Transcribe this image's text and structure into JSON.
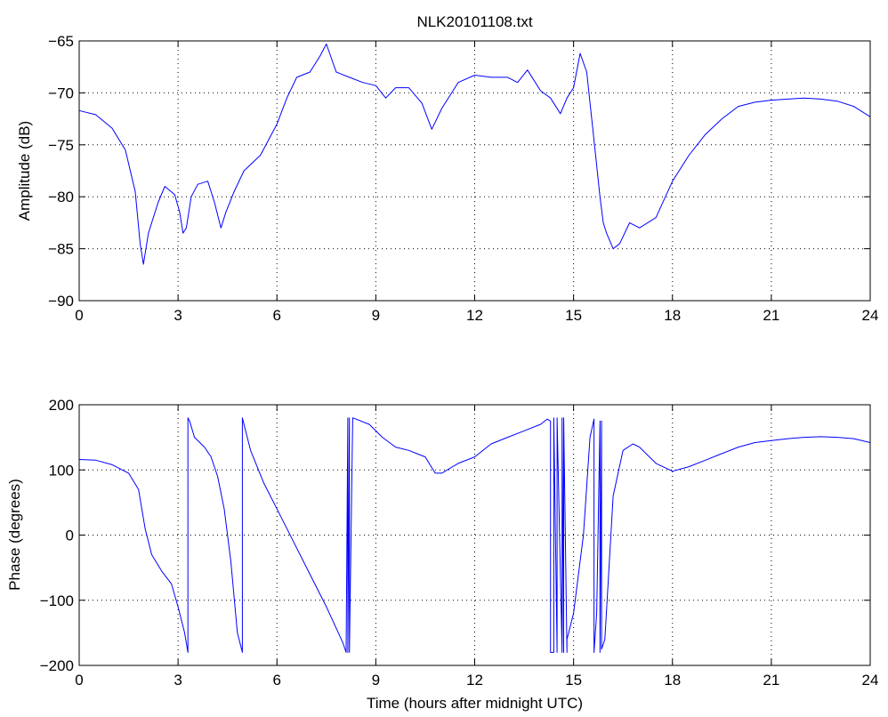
{
  "chart_data": [
    {
      "type": "line",
      "title": "NLK20101108.txt",
      "xlabel": "",
      "ylabel": "Amplitude (dB)",
      "xlim": [
        0,
        24
      ],
      "ylim": [
        -90,
        -65
      ],
      "xticks": [
        0,
        3,
        6,
        9,
        12,
        15,
        18,
        21,
        24
      ],
      "yticks": [
        -90,
        -85,
        -80,
        -75,
        -70,
        -65
      ],
      "xtick_labels": [
        "0",
        "3",
        "6",
        "9",
        "12",
        "15",
        "18",
        "21",
        "24"
      ],
      "ytick_labels": [
        "−90",
        "−85",
        "−80",
        "−75",
        "−70",
        "−65"
      ],
      "grid": true,
      "color": "#0000ff",
      "series": [
        {
          "x": [
            0,
            0.5,
            1,
            1.4,
            1.7,
            1.85,
            1.95,
            2.1,
            2.4,
            2.6,
            2.9,
            3.05,
            3.15,
            3.25,
            3.4,
            3.6,
            3.9,
            4.1,
            4.3,
            4.45,
            4.7,
            5.0,
            5.5,
            6.0,
            6.3,
            6.6,
            7.0,
            7.3,
            7.5,
            7.8,
            8.2,
            8.6,
            9.0,
            9.3,
            9.6,
            10.0,
            10.4,
            10.7,
            11.0,
            11.5,
            12.0,
            12.5,
            13.0,
            13.3,
            13.6,
            14.0,
            14.3,
            14.6,
            14.8,
            15.0,
            15.2,
            15.4,
            15.6,
            15.8,
            15.9,
            16.0,
            16.2,
            16.4,
            16.7,
            17.0,
            17.5,
            18.0,
            18.5,
            19.0,
            19.5,
            20.0,
            20.5,
            21.0,
            21.5,
            22.0,
            22.5,
            23.0,
            23.5,
            24.0
          ],
          "y": [
            -71.7,
            -72.1,
            -73.4,
            -75.5,
            -79.5,
            -84.5,
            -86.5,
            -83.5,
            -80.5,
            -79.0,
            -79.8,
            -81.5,
            -83.5,
            -83.0,
            -80.0,
            -78.8,
            -78.5,
            -80.5,
            -83.0,
            -81.5,
            -79.5,
            -77.5,
            -76.0,
            -73.0,
            -70.5,
            -68.5,
            -68.0,
            -66.5,
            -65.3,
            -68.0,
            -68.5,
            -69.0,
            -69.3,
            -70.5,
            -69.5,
            -69.5,
            -71.0,
            -73.5,
            -71.5,
            -69.0,
            -68.3,
            -68.5,
            -68.5,
            -69.0,
            -67.8,
            -69.8,
            -70.5,
            -72.0,
            -70.5,
            -69.5,
            -66.2,
            -68.0,
            -74.0,
            -80.0,
            -82.5,
            -83.5,
            -85.0,
            -84.5,
            -82.5,
            -83.0,
            -82.0,
            -78.5,
            -76.0,
            -74.0,
            -72.5,
            -71.3,
            -70.9,
            -70.7,
            -70.6,
            -70.5,
            -70.6,
            -70.8,
            -71.3,
            -72.3
          ]
        }
      ]
    },
    {
      "type": "line",
      "title": "",
      "xlabel": "Time (hours after midnight UTC)",
      "ylabel": "Phase (degrees)",
      "xlim": [
        0,
        24
      ],
      "ylim": [
        -200,
        200
      ],
      "xticks": [
        0,
        3,
        6,
        9,
        12,
        15,
        18,
        21,
        24
      ],
      "yticks": [
        -200,
        -100,
        0,
        100,
        200
      ],
      "xtick_labels": [
        "0",
        "3",
        "6",
        "9",
        "12",
        "15",
        "18",
        "21",
        "24"
      ],
      "ytick_labels": [
        "−200",
        "−100",
        "0",
        "100",
        "200"
      ],
      "grid": true,
      "color": "#0000ff",
      "series": [
        {
          "x": [
            0,
            0.5,
            1.0,
            1.5,
            1.8,
            2.0,
            2.2,
            2.5,
            2.8,
            3.0,
            3.2,
            3.3,
            3.3,
            3.35,
            3.5,
            3.8,
            4.0,
            4.2,
            4.4,
            4.6,
            4.8,
            4.95,
            4.95,
            5.0,
            5.2,
            5.6,
            6.0,
            6.5,
            7.0,
            7.5,
            8.0,
            8.1,
            8.1,
            8.15,
            8.15,
            8.2,
            8.2,
            8.3,
            8.8,
            9.2,
            9.6,
            10.0,
            10.5,
            10.8,
            11.0,
            11.5,
            12.0,
            12.5,
            13.0,
            13.5,
            14.0,
            14.2,
            14.3,
            14.3,
            14.4,
            14.4,
            14.5,
            14.5,
            14.65,
            14.65,
            14.7,
            14.7,
            14.8,
            14.8,
            15.0,
            15.3,
            15.5,
            15.62,
            15.62,
            15.7,
            15.8,
            15.8,
            15.85,
            15.85,
            15.95,
            16.2,
            16.5,
            16.8,
            17.0,
            17.5,
            18.0,
            18.5,
            19.0,
            19.5,
            20.0,
            20.5,
            21.0,
            21.5,
            22.0,
            22.5,
            23.0,
            23.5,
            24.0
          ],
          "y": [
            116,
            115,
            108,
            95,
            70,
            10,
            -30,
            -55,
            -75,
            -110,
            -150,
            -180,
            180,
            175,
            150,
            135,
            120,
            90,
            40,
            -40,
            -150,
            -180,
            180,
            170,
            130,
            80,
            40,
            -10,
            -60,
            -110,
            -165,
            -180,
            -180,
            180,
            -180,
            180,
            -180,
            180,
            170,
            150,
            135,
            130,
            120,
            95,
            95,
            110,
            120,
            140,
            150,
            160,
            170,
            178,
            175,
            -180,
            -180,
            180,
            -180,
            180,
            -180,
            180,
            -180,
            180,
            -180,
            -160,
            -120,
            0,
            150,
            178,
            -180,
            -120,
            175,
            -180,
            175,
            -175,
            -160,
            60,
            130,
            140,
            135,
            110,
            98,
            105,
            115,
            125,
            135,
            142,
            145,
            148,
            150,
            151,
            150,
            148,
            142
          ]
        }
      ]
    }
  ]
}
